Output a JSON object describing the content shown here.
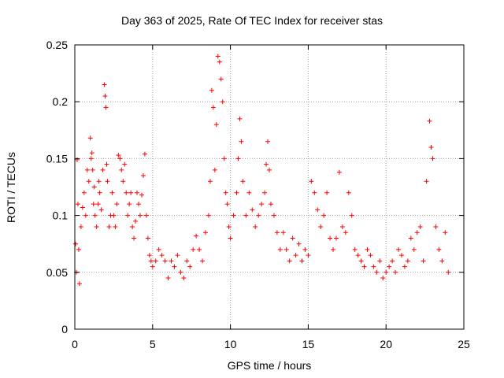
{
  "chart_data": {
    "type": "scatter",
    "title": "Day 363 of 2025, Rate Of TEC Index for receiver stas",
    "xlabel": "GPS time / hours",
    "ylabel": "ROTI / TECUs",
    "xlim": [
      0,
      25
    ],
    "ylim": [
      0,
      0.25
    ],
    "xticks": [
      "0",
      "5",
      "10",
      "15",
      "20",
      "25"
    ],
    "xtick_values": [
      0,
      5,
      10,
      15,
      20,
      25
    ],
    "yticks": [
      "0",
      "0.05",
      "0.1",
      "0.15",
      "0.2",
      "0.25"
    ],
    "ytick_values": [
      0,
      0.05,
      0.1,
      0.15,
      0.2,
      0.25
    ],
    "grid": true,
    "marker": "plus",
    "color": "#ff0000",
    "series": [
      {
        "x": [
          0.05,
          0.1,
          0.15,
          0.2,
          0.25,
          0.3,
          0.4,
          0.5,
          0.6,
          0.7,
          0.8,
          0.9,
          1.0,
          1.05,
          1.1,
          1.15,
          1.2,
          1.25,
          1.3,
          1.4,
          1.5,
          1.55,
          1.6,
          1.7,
          1.8,
          1.9,
          1.95,
          2.0,
          2.05,
          2.1,
          2.2,
          2.3,
          2.4,
          2.5,
          2.6,
          2.7,
          2.8,
          2.9,
          3.0,
          3.1,
          3.2,
          3.3,
          3.4,
          3.5,
          3.6,
          3.7,
          3.8,
          3.9,
          4.0,
          4.1,
          4.2,
          4.3,
          4.4,
          4.5,
          4.6,
          4.7,
          4.8,
          4.9,
          5.0,
          5.2,
          5.4,
          5.6,
          5.8,
          6.0,
          6.2,
          6.4,
          6.6,
          6.8,
          7.0,
          7.2,
          7.4,
          7.6,
          7.8,
          8.0,
          8.2,
          8.4,
          8.6,
          8.7,
          8.8,
          8.9,
          9.0,
          9.1,
          9.2,
          9.3,
          9.4,
          9.5,
          9.6,
          9.7,
          9.8,
          9.9,
          10.0,
          10.2,
          10.4,
          10.5,
          10.6,
          10.7,
          10.8,
          11.0,
          11.2,
          11.4,
          11.6,
          11.8,
          12.0,
          12.2,
          12.3,
          12.4,
          12.5,
          12.6,
          12.8,
          13.0,
          13.2,
          13.4,
          13.6,
          13.8,
          14.0,
          14.2,
          14.4,
          14.6,
          14.8,
          15.0,
          15.2,
          15.4,
          15.6,
          15.8,
          16.0,
          16.2,
          16.4,
          16.6,
          16.8,
          17.0,
          17.2,
          17.4,
          17.6,
          17.8,
          18.0,
          18.2,
          18.4,
          18.6,
          18.8,
          19.0,
          19.2,
          19.4,
          19.6,
          19.8,
          20.0,
          20.2,
          20.4,
          20.6,
          20.8,
          21.0,
          21.2,
          21.4,
          21.6,
          21.8,
          22.0,
          22.2,
          22.4,
          22.6,
          22.8,
          22.9,
          23.0,
          23.2,
          23.4,
          23.6,
          23.8,
          24.0
        ],
        "y": [
          0.075,
          0.05,
          0.149,
          0.11,
          0.07,
          0.04,
          0.09,
          0.107,
          0.12,
          0.1,
          0.14,
          0.13,
          0.168,
          0.15,
          0.155,
          0.14,
          0.11,
          0.125,
          0.1,
          0.09,
          0.11,
          0.13,
          0.12,
          0.105,
          0.14,
          0.215,
          0.205,
          0.195,
          0.145,
          0.13,
          0.09,
          0.1,
          0.12,
          0.1,
          0.09,
          0.11,
          0.153,
          0.15,
          0.14,
          0.13,
          0.145,
          0.12,
          0.1,
          0.11,
          0.12,
          0.09,
          0.08,
          0.095,
          0.12,
          0.11,
          0.1,
          0.118,
          0.135,
          0.154,
          0.1,
          0.08,
          0.065,
          0.06,
          0.055,
          0.06,
          0.07,
          0.065,
          0.06,
          0.045,
          0.06,
          0.055,
          0.065,
          0.05,
          0.045,
          0.06,
          0.055,
          0.07,
          0.082,
          0.07,
          0.06,
          0.085,
          0.1,
          0.13,
          0.21,
          0.195,
          0.14,
          0.18,
          0.24,
          0.235,
          0.22,
          0.2,
          0.15,
          0.12,
          0.11,
          0.09,
          0.08,
          0.1,
          0.12,
          0.15,
          0.185,
          0.165,
          0.13,
          0.1,
          0.12,
          0.105,
          0.09,
          0.1,
          0.11,
          0.12,
          0.145,
          0.165,
          0.14,
          0.11,
          0.1,
          0.085,
          0.07,
          0.085,
          0.07,
          0.06,
          0.08,
          0.065,
          0.075,
          0.06,
          0.07,
          0.065,
          0.13,
          0.12,
          0.105,
          0.09,
          0.1,
          0.12,
          0.08,
          0.07,
          0.08,
          0.138,
          0.09,
          0.085,
          0.12,
          0.1,
          0.07,
          0.065,
          0.06,
          0.055,
          0.07,
          0.065,
          0.055,
          0.05,
          0.06,
          0.045,
          0.05,
          0.055,
          0.06,
          0.05,
          0.07,
          0.065,
          0.055,
          0.06,
          0.08,
          0.07,
          0.085,
          0.09,
          0.06,
          0.13,
          0.183,
          0.16,
          0.15,
          0.09,
          0.07,
          0.06,
          0.085,
          0.05
        ]
      }
    ]
  }
}
